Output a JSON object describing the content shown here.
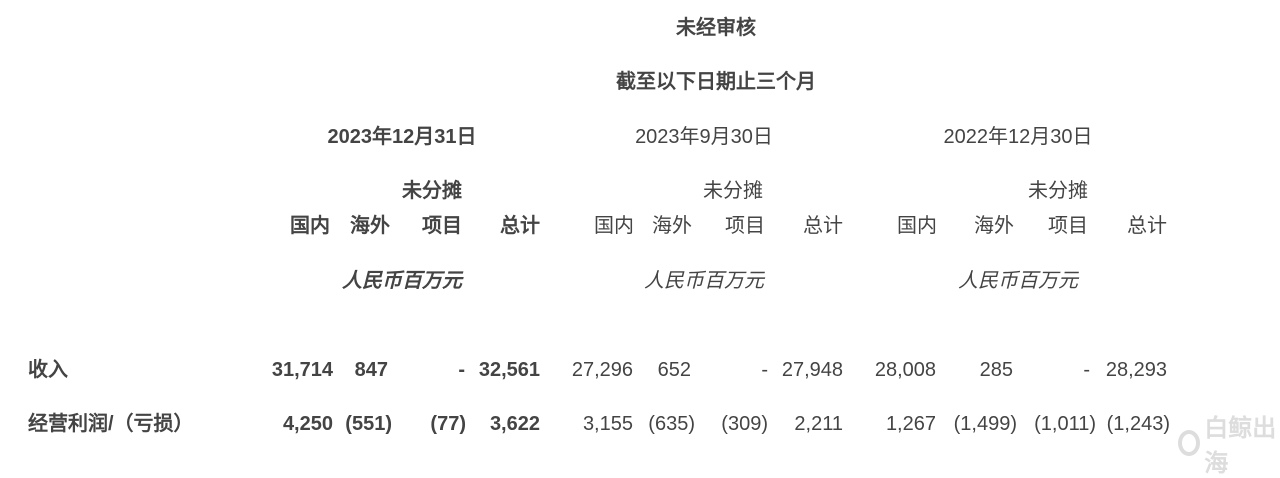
{
  "header": {
    "title": "未经审核",
    "subtitle": "截至以下日期止三个月"
  },
  "periods": [
    {
      "date": "2023年12月31日",
      "unallocated": "未分摊",
      "cols": [
        "国内",
        "海外",
        "项目",
        "总计"
      ],
      "unit": "人民币百万元"
    },
    {
      "date": "2023年9月30日",
      "unallocated": "未分摊",
      "cols": [
        "国内",
        "海外",
        "项目",
        "总计"
      ],
      "unit": "人民币百万元"
    },
    {
      "date": "2022年12月30日",
      "unallocated": "未分摊",
      "cols": [
        "国内",
        "海外",
        "项目",
        "总计"
      ],
      "unit": "人民币百万元"
    }
  ],
  "rows": [
    {
      "label": "收入",
      "values": [
        "31,714",
        "847",
        "-",
        "32,561",
        "27,296",
        "652",
        "-",
        "27,948",
        "28,008",
        "285",
        "-",
        "28,293"
      ]
    },
    {
      "label": "经营利润/（亏损）",
      "values": [
        "4,250",
        "(551)",
        "(77)",
        "3,622",
        "3,155",
        "(635)",
        "(309)",
        "2,211",
        "1,267",
        "(1,499)",
        "(1,011)",
        "(1,243)"
      ]
    }
  ],
  "watermark": "白鲸出海"
}
